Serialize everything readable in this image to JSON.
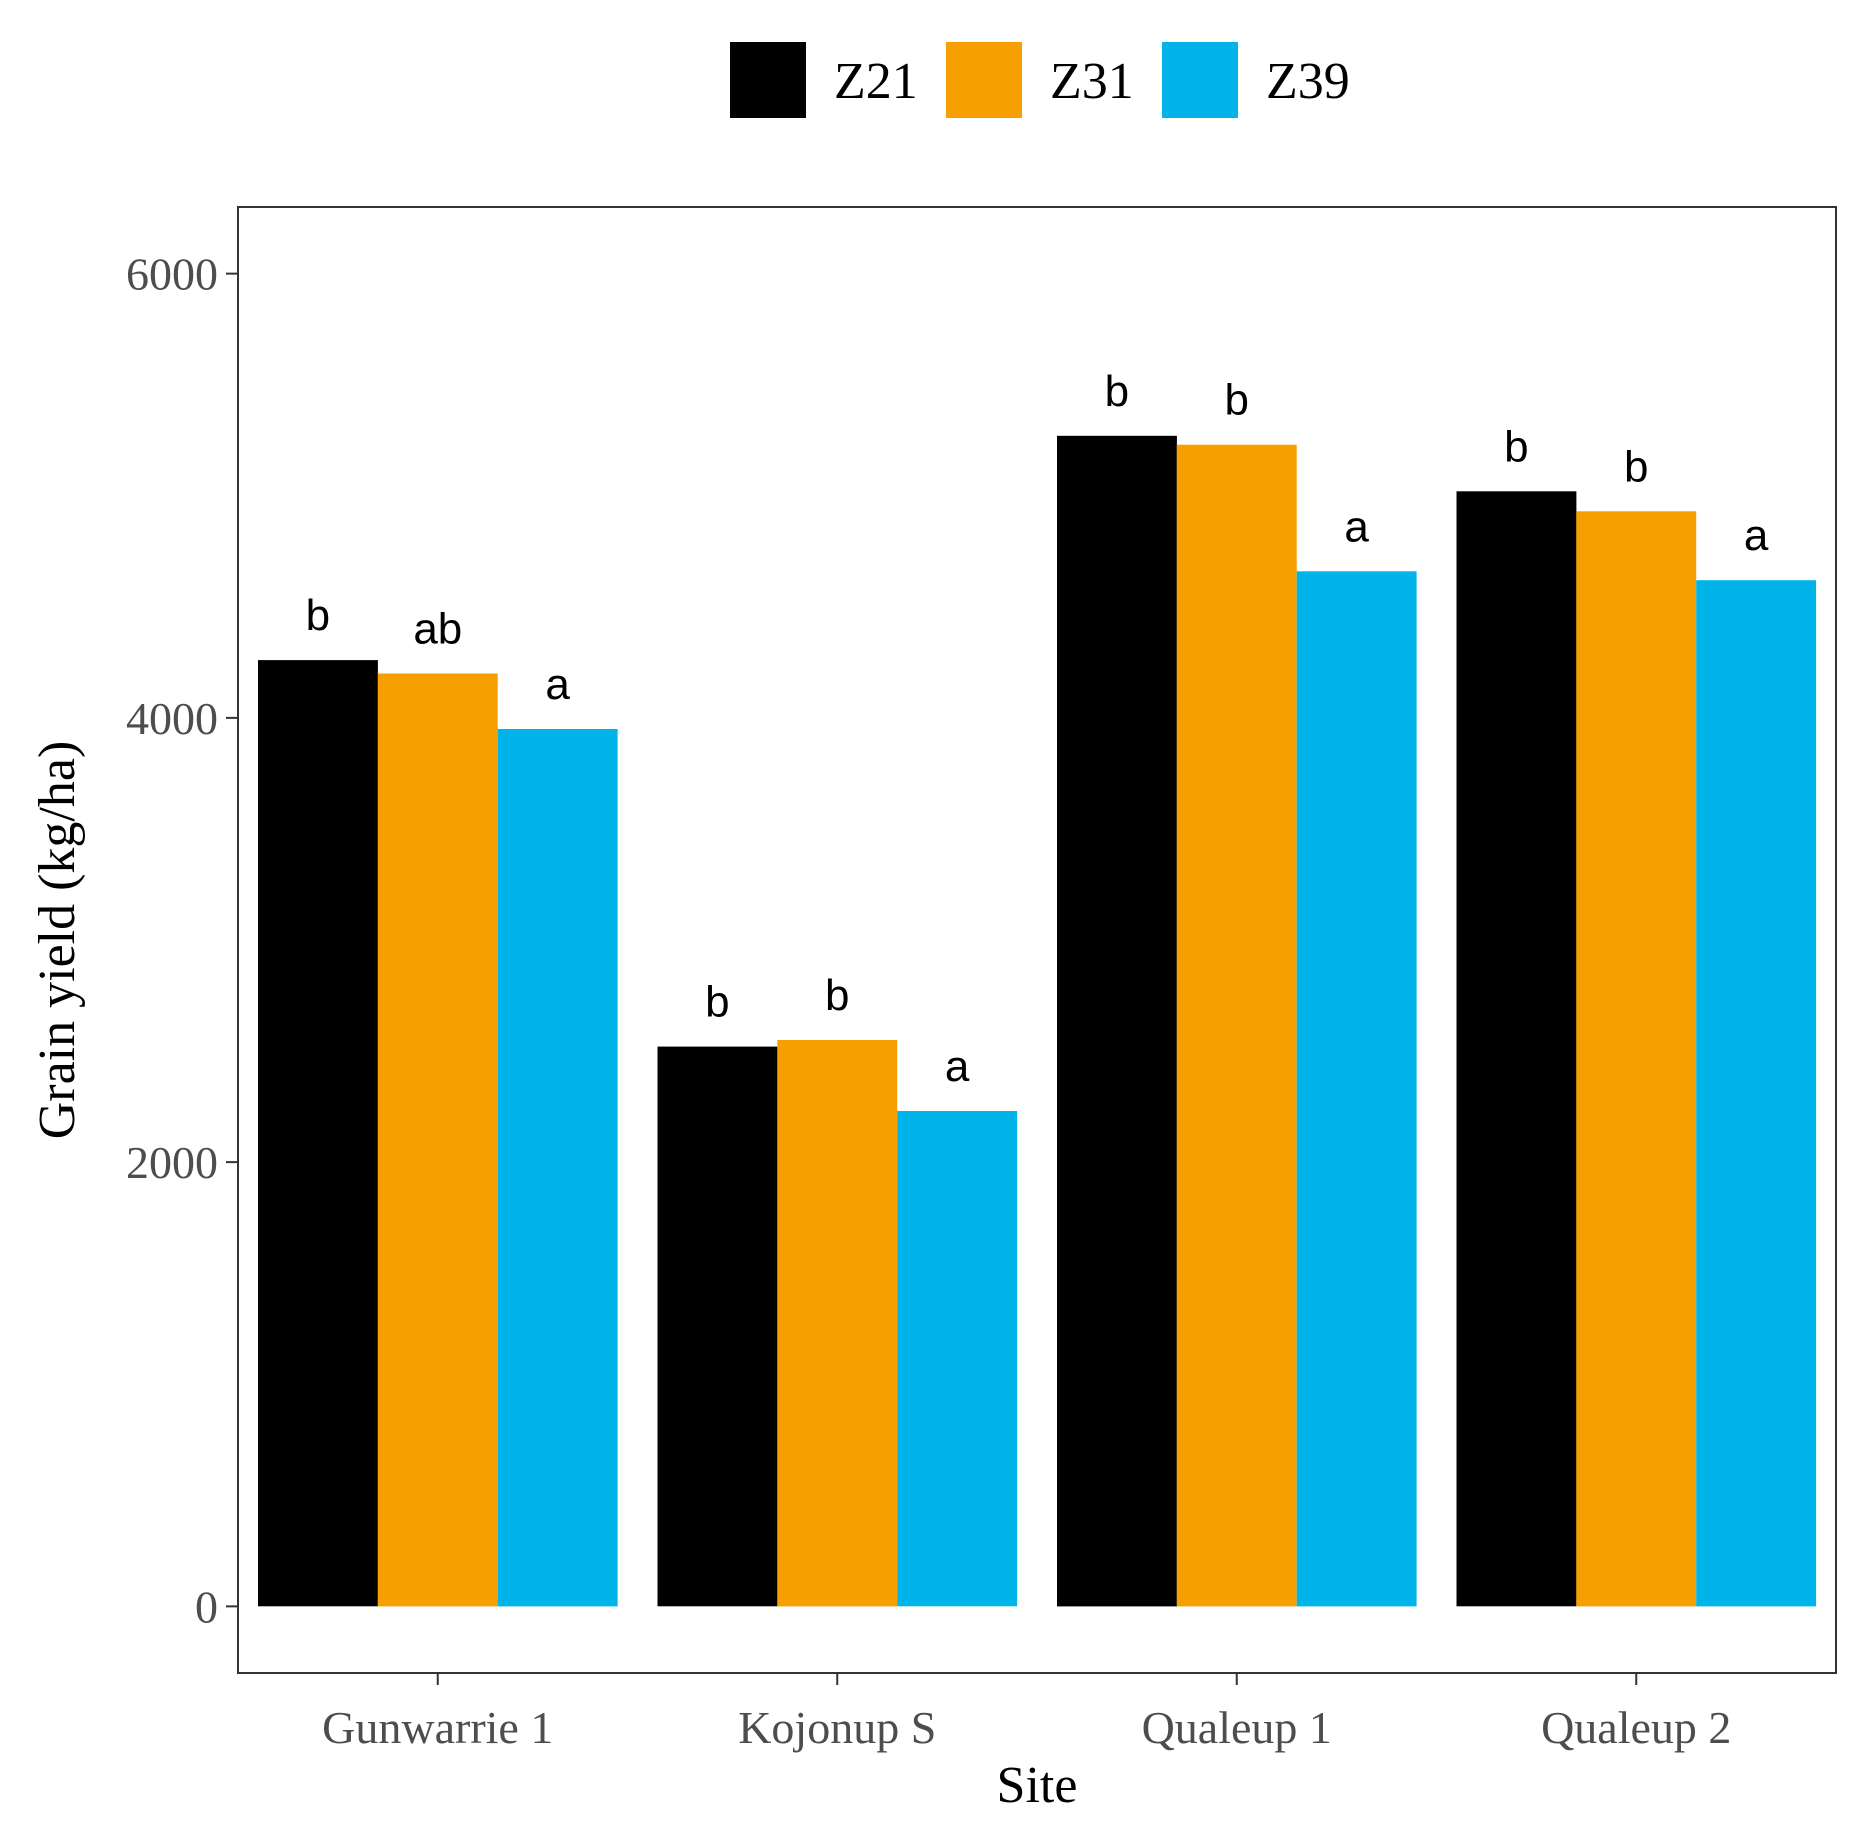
{
  "chart_data": {
    "type": "bar",
    "title": "",
    "xlabel": "Site",
    "ylabel": "Grain yield (kg/ha)",
    "categories": [
      "Gunwarrie 1",
      "Kojonup S",
      "Qualeup 1",
      "Qualeup 2"
    ],
    "ylim": [
      -300,
      6300
    ],
    "yticks": [
      0,
      2000,
      4000,
      6000
    ],
    "ytick_labels": [
      "0",
      "2000",
      "4000",
      "6000"
    ],
    "legend_position": "top",
    "grid": false,
    "series": [
      {
        "name": "Z21",
        "color": "#000000",
        "values": [
          4260,
          2520,
          5270,
          5020
        ],
        "labels": [
          "b",
          "b",
          "b",
          "b"
        ]
      },
      {
        "name": "Z31",
        "color": "#f5a000",
        "values": [
          4200,
          2550,
          5230,
          4930
        ],
        "labels": [
          "ab",
          "b",
          "b",
          "b"
        ]
      },
      {
        "name": "Z39",
        "color": "#00b4ea",
        "values": [
          3950,
          2230,
          4660,
          4620
        ],
        "labels": [
          "a",
          "a",
          "a",
          "a"
        ]
      }
    ]
  }
}
